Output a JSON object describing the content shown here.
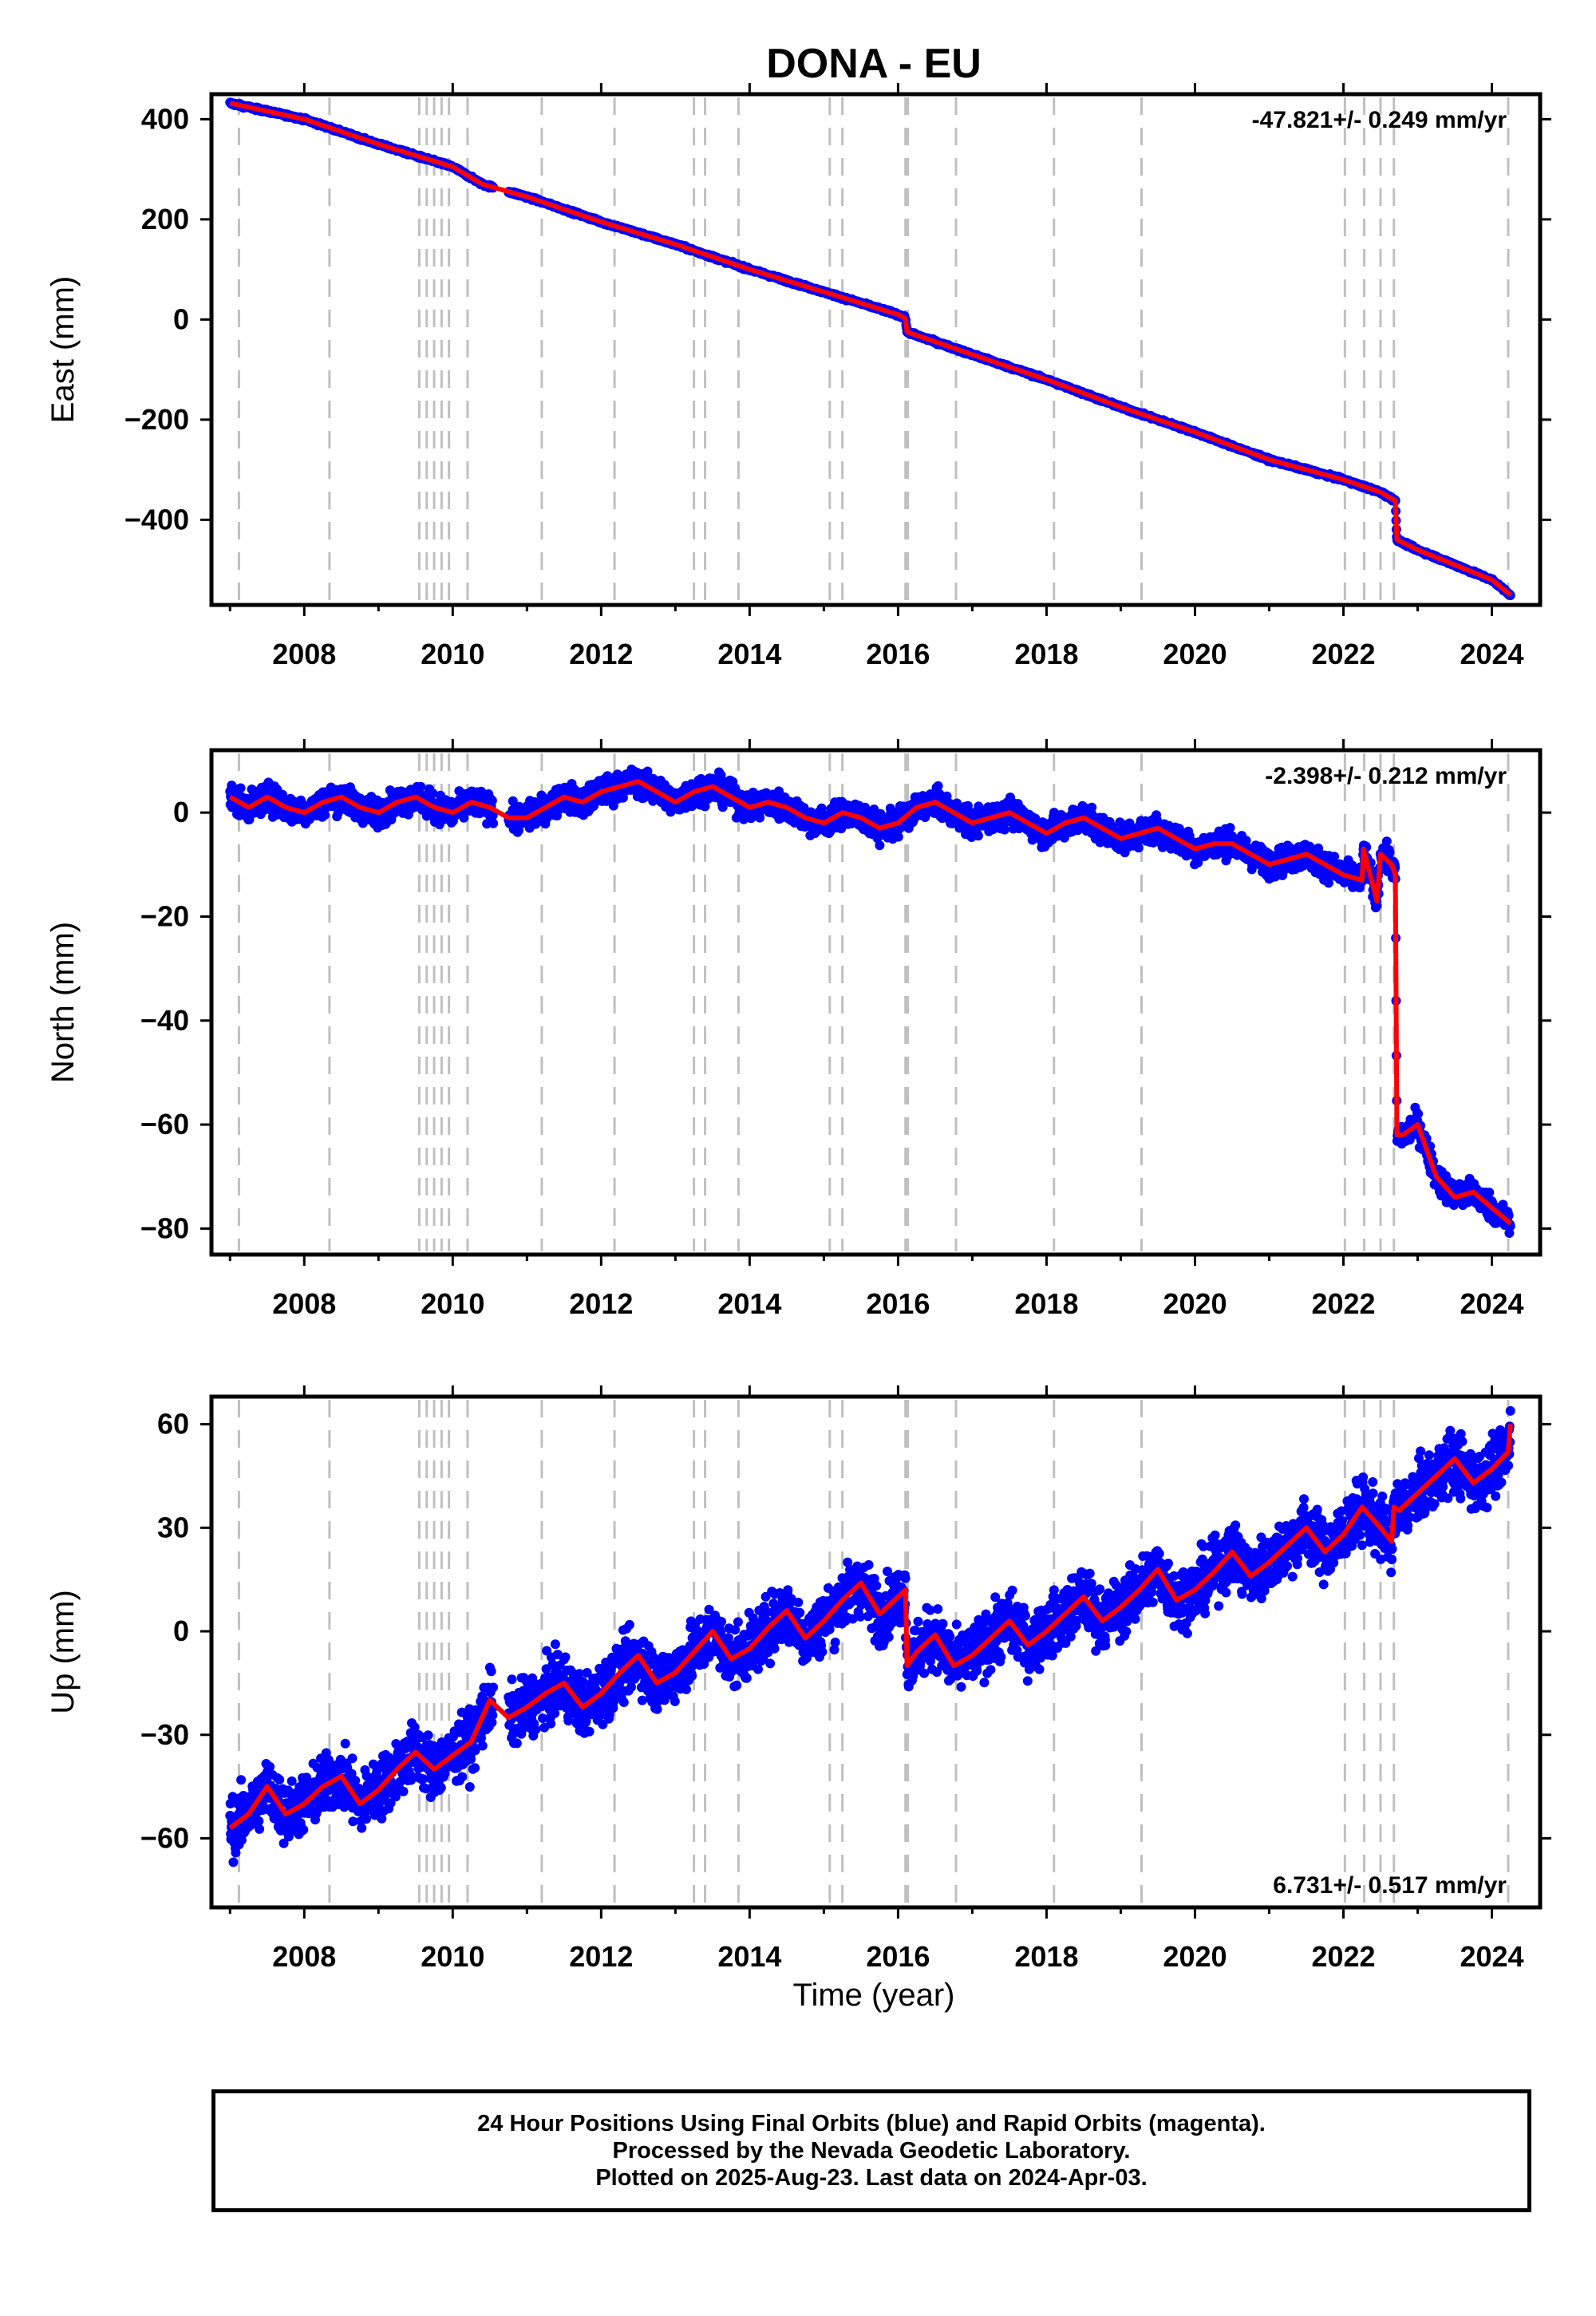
{
  "title": "DONA - EU",
  "colors": {
    "data": "#0000ff",
    "model": "#ff0000",
    "steps": "#c0c0c0",
    "axis": "#000000"
  },
  "xaxis": {
    "label": "Time (year)",
    "range": [
      2006.75,
      2024.65
    ],
    "ticks": [
      "2008",
      "2010",
      "2012",
      "2014",
      "2016",
      "2018",
      "2020",
      "2022",
      "2024"
    ]
  },
  "step_lines": [
    2007.12,
    2008.34,
    2009.55,
    2009.65,
    2009.75,
    2009.85,
    2009.95,
    2010.2,
    2011.2,
    2012.18,
    2013.25,
    2013.4,
    2013.85,
    2015.08,
    2015.25,
    2016.1,
    2016.13,
    2016.78,
    2018.1,
    2019.28,
    2022.02,
    2022.28,
    2022.5,
    2022.68,
    2024.22
  ],
  "footer": {
    "line1": "24 Hour Positions Using Final Orbits (blue) and Rapid Orbits (magenta).",
    "line2": "Processed by the Nevada Geodetic Laboratory.",
    "line3": "Plotted on 2025-Aug-23. Last data on 2024-Apr-03."
  },
  "chart_data": [
    {
      "type": "scatter",
      "ylabel": "East (mm)",
      "ylim": [
        -570,
        450
      ],
      "yticks": [
        "400",
        "200",
        "0",
        "−200",
        "−400"
      ],
      "rate": "-47.821+/- 0.249 mm/yr",
      "rate_position": "top-right",
      "noise": 2,
      "series": [
        {
          "name": "",
          "x": [
            2007.0,
            2008.0,
            2009.0,
            2010.0,
            2010.4,
            2011.0,
            2012.0,
            2013.0,
            2014.0,
            2015.0,
            2016.0,
            2016.1,
            2016.12,
            2017.0,
            2018.0,
            2019.0,
            2020.0,
            2021.0,
            2022.0,
            2022.5,
            2022.7,
            2022.72,
            2023.0,
            2024.0,
            2024.25
          ],
          "y": [
            432,
            400,
            350,
            305,
            270,
            245,
            195,
            150,
            100,
            55,
            10,
            2,
            -25,
            -70,
            -120,
            -175,
            -225,
            -280,
            -320,
            -345,
            -362,
            -440,
            -460,
            -520,
            -550
          ]
        }
      ]
    },
    {
      "type": "scatter",
      "ylabel": "North (mm)",
      "ylim": [
        -85,
        12
      ],
      "yticks": [
        "0",
        "−20",
        "−40",
        "−60",
        "−80"
      ],
      "rate": "-2.398+/- 0.212 mm/yr",
      "rate_position": "top-right",
      "noise": 1.8,
      "series": [
        {
          "name": "",
          "x": [
            2007.0,
            2007.25,
            2007.5,
            2007.75,
            2008.0,
            2008.25,
            2008.5,
            2008.75,
            2009.0,
            2009.25,
            2009.5,
            2009.75,
            2010.0,
            2010.25,
            2010.5,
            2010.75,
            2011.0,
            2011.25,
            2011.5,
            2011.75,
            2012.0,
            2012.25,
            2012.5,
            2012.75,
            2013.0,
            2013.25,
            2013.5,
            2013.75,
            2014.0,
            2014.25,
            2014.5,
            2014.75,
            2015.0,
            2015.25,
            2015.5,
            2015.75,
            2016.0,
            2016.25,
            2016.5,
            2016.75,
            2017.0,
            2017.25,
            2017.5,
            2017.75,
            2018.0,
            2018.25,
            2018.5,
            2018.75,
            2019.0,
            2019.25,
            2019.5,
            2019.75,
            2020.0,
            2020.25,
            2020.5,
            2020.75,
            2021.0,
            2021.25,
            2021.5,
            2021.75,
            2022.0,
            2022.25,
            2022.27,
            2022.45,
            2022.5,
            2022.65,
            2022.7,
            2022.72,
            2022.8,
            2023.0,
            2023.25,
            2023.5,
            2023.75,
            2024.0,
            2024.25
          ],
          "y": [
            3,
            1,
            3,
            1,
            0,
            2,
            3,
            1,
            0,
            2,
            3,
            1,
            0,
            2,
            1,
            -1,
            -1,
            1,
            3,
            2,
            4,
            5,
            6,
            4,
            2,
            4,
            5,
            3,
            1,
            2,
            1,
            -1,
            -2,
            0,
            -1,
            -3,
            -2,
            1,
            2,
            0,
            -2,
            -1,
            0,
            -2,
            -4,
            -2,
            -1,
            -3,
            -5,
            -4,
            -3,
            -5,
            -7,
            -6,
            -6,
            -8,
            -10,
            -9,
            -8,
            -10,
            -12,
            -13,
            -7,
            -17,
            -8,
            -10,
            -12,
            -62,
            -62,
            -60,
            -70,
            -74,
            -73,
            -76,
            -79
          ]
        }
      ]
    },
    {
      "type": "scatter",
      "ylabel": "Up (mm)",
      "ylim": [
        -80,
        68
      ],
      "yticks": [
        "60",
        "30",
        "0",
        "−30",
        "−60"
      ],
      "rate": "6.731+/- 0.517 mm/yr",
      "rate_position": "bottom-right",
      "noise": 6,
      "series": [
        {
          "name": "",
          "x": [
            2007.0,
            2007.25,
            2007.5,
            2007.75,
            2008.0,
            2008.25,
            2008.5,
            2008.75,
            2009.0,
            2009.25,
            2009.5,
            2009.75,
            2010.0,
            2010.25,
            2010.5,
            2010.75,
            2011.0,
            2011.25,
            2011.5,
            2011.75,
            2012.0,
            2012.25,
            2012.5,
            2012.75,
            2013.0,
            2013.25,
            2013.5,
            2013.75,
            2014.0,
            2014.25,
            2014.5,
            2014.75,
            2015.0,
            2015.25,
            2015.5,
            2015.75,
            2016.0,
            2016.1,
            2016.12,
            2016.25,
            2016.5,
            2016.75,
            2017.0,
            2017.25,
            2017.5,
            2017.75,
            2018.0,
            2018.25,
            2018.5,
            2018.75,
            2019.0,
            2019.25,
            2019.5,
            2019.75,
            2020.0,
            2020.25,
            2020.5,
            2020.75,
            2021.0,
            2021.25,
            2021.5,
            2021.75,
            2022.0,
            2022.25,
            2022.5,
            2022.65,
            2022.68,
            2022.75,
            2023.0,
            2023.25,
            2023.5,
            2023.75,
            2024.0,
            2024.22,
            2024.25
          ],
          "y": [
            -57,
            -53,
            -45,
            -53,
            -50,
            -45,
            -42,
            -50,
            -46,
            -40,
            -35,
            -40,
            -36,
            -32,
            -20,
            -25,
            -22,
            -18,
            -15,
            -22,
            -18,
            -12,
            -7,
            -15,
            -12,
            -6,
            0,
            -8,
            -5,
            1,
            6,
            -2,
            3,
            9,
            14,
            5,
            10,
            12,
            -10,
            -6,
            -1,
            -10,
            -7,
            -2,
            3,
            -4,
            0,
            5,
            10,
            3,
            7,
            12,
            18,
            9,
            12,
            17,
            23,
            16,
            20,
            25,
            30,
            23,
            28,
            36,
            30,
            26,
            36,
            35,
            40,
            45,
            50,
            43,
            47,
            52,
            60
          ]
        }
      ]
    }
  ]
}
